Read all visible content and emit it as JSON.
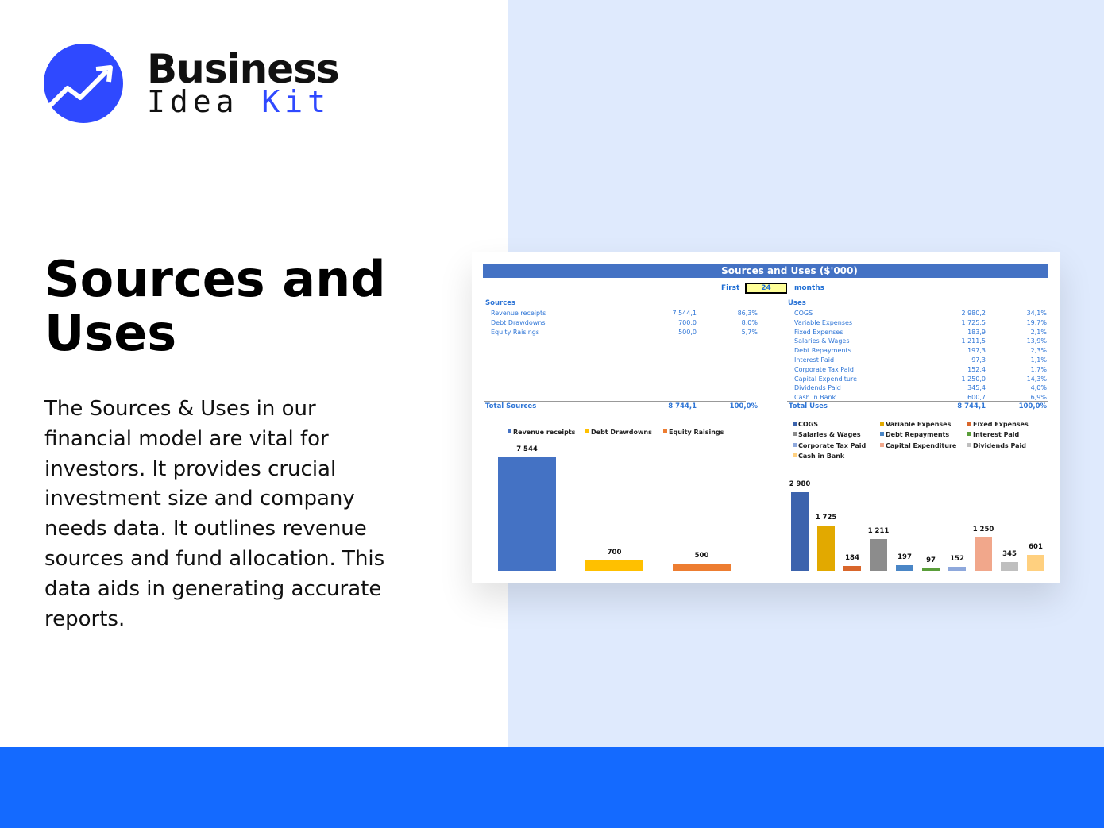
{
  "brand": {
    "line1": "Business",
    "line2a": "Idea",
    "line2b": "Kit"
  },
  "heading": "Sources and Uses",
  "description": "The Sources & Uses in our financial model are vital for investors. It provides crucial investment size and company needs data. It outlines revenue sources and fund allocation. This data aids in generating accurate reports.",
  "colors": {
    "panel": "#dfeafd",
    "band": "#146aff",
    "header": "#4472c4",
    "text": "#2e75d6"
  },
  "sheet": {
    "title": "Sources and Uses ($'000)",
    "first_label": "First",
    "months_value": "24",
    "months_label": "months",
    "sources": {
      "label": "Sources",
      "rows": [
        {
          "name": "Revenue receipts",
          "value": "7 544,1",
          "pct": "86,3%"
        },
        {
          "name": "Debt Drawdowns",
          "value": "700,0",
          "pct": "8,0%"
        },
        {
          "name": "Equity Raisings",
          "value": "500,0",
          "pct": "5,7%"
        }
      ],
      "total": {
        "name": "Total Sources",
        "value": "8 744,1",
        "pct": "100,0%"
      }
    },
    "uses": {
      "label": "Uses",
      "rows": [
        {
          "name": "COGS",
          "value": "2 980,2",
          "pct": "34,1%"
        },
        {
          "name": "Variable Expenses",
          "value": "1 725,5",
          "pct": "19,7%"
        },
        {
          "name": "Fixed Expenses",
          "value": "183,9",
          "pct": "2,1%"
        },
        {
          "name": "Salaries & Wages",
          "value": "1 211,5",
          "pct": "13,9%"
        },
        {
          "name": "Debt Repayments",
          "value": "197,3",
          "pct": "2,3%"
        },
        {
          "name": "Interest Paid",
          "value": "97,3",
          "pct": "1,1%"
        },
        {
          "name": "Corporate Tax Paid",
          "value": "152,4",
          "pct": "1,7%"
        },
        {
          "name": "Capital Expenditure",
          "value": "1 250,0",
          "pct": "14,3%"
        },
        {
          "name": "Dividends Paid",
          "value": "345,4",
          "pct": "4,0%"
        },
        {
          "name": "Cash in Bank",
          "value": "600,7",
          "pct": "6,9%"
        }
      ],
      "total": {
        "name": "Total Uses",
        "value": "8 744,1",
        "pct": "100,0%"
      }
    }
  },
  "chart_data": [
    {
      "type": "bar",
      "categories": [
        "Revenue receipts",
        "Debt Drawdowns",
        "Equity Raisings"
      ],
      "values": [
        7544,
        700,
        500
      ],
      "labels": [
        "7 544",
        "700",
        "500"
      ],
      "colors": [
        "#4472c4",
        "#ffc000",
        "#ed7d31"
      ],
      "legend": "top",
      "grid": false
    },
    {
      "type": "bar",
      "categories": [
        "COGS",
        "Variable Expenses",
        "Fixed Expenses",
        "Salaries & Wages",
        "Debt Repayments",
        "Interest Paid",
        "Corporate Tax Paid",
        "Capital Expenditure",
        "Dividends Paid",
        "Cash in Bank"
      ],
      "values": [
        2980,
        1725,
        184,
        1211,
        197,
        97,
        152,
        1250,
        345,
        601
      ],
      "labels": [
        "2 980",
        "1 725",
        "184",
        "1 211",
        "197",
        "97",
        "152",
        "1 250",
        "345",
        "601"
      ],
      "colors": [
        "#3c63ad",
        "#e2a900",
        "#d9662b",
        "#8c8c8c",
        "#4a86c6",
        "#5a9e3a",
        "#8ea8dc",
        "#f1a78b",
        "#bfbfbf",
        "#ffd07f"
      ],
      "legend": "top",
      "grid": false
    }
  ]
}
